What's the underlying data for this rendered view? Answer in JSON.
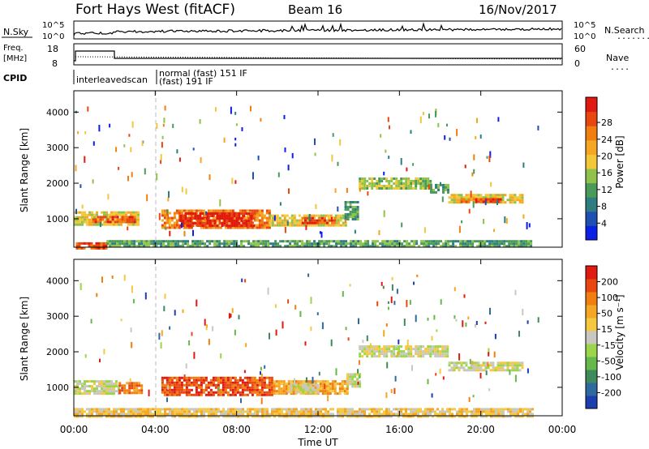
{
  "header": {
    "station": "Fort Hays West (fitACF)",
    "beam": "Beam 16",
    "date": "16/Nov/2017"
  },
  "panels": {
    "nsky": {
      "left_label": "N.Sky",
      "left_ticks": [
        "10^5",
        "10^0"
      ],
      "right_label": "N.Search",
      "right_ticks": [
        "10^5",
        "10^0"
      ],
      "legend_dots": "........"
    },
    "freq": {
      "left_label_1": "Freq.",
      "left_label_2": "[MHz]",
      "left_ticks": [
        "18",
        "8"
      ],
      "right_label": "Nave",
      "right_ticks": [
        "60",
        "0"
      ],
      "legend_dots": "...."
    },
    "cpid": {
      "label": "CPID",
      "modes": [
        "interleavedscan",
        "normal (fast) 151 IF",
        "(fast) 191 IF"
      ]
    }
  },
  "chart_data": [
    {
      "type": "heatmap",
      "name": "power",
      "ylabel": "Slant Range [km]",
      "yticks": [
        "1000",
        "2000",
        "3000",
        "4000"
      ],
      "ylim": [
        200,
        4600
      ],
      "xlim": [
        0,
        24
      ],
      "colorbar": {
        "label": "Power [dB]",
        "ticks": [
          "4",
          "8",
          "12",
          "16",
          "20",
          "24",
          "28"
        ],
        "colors": [
          "#0b1fe6",
          "#1f4fb0",
          "#2e7d82",
          "#4a9a5a",
          "#8fc24a",
          "#f2c83a",
          "#f5a623",
          "#f07f10",
          "#e84810",
          "#e01a10"
        ]
      },
      "regions": [
        {
          "x0": 0.0,
          "x1": 3.2,
          "y0": 820,
          "y1": 1210,
          "level": 5
        },
        {
          "x0": 0.9,
          "x1": 3.0,
          "y0": 900,
          "y1": 1080,
          "level": 8
        },
        {
          "x0": 4.3,
          "x1": 9.6,
          "y0": 780,
          "y1": 1260,
          "level": 7
        },
        {
          "x0": 5.2,
          "x1": 8.8,
          "y0": 820,
          "y1": 1180,
          "level": 9
        },
        {
          "x0": 9.6,
          "x1": 13.4,
          "y0": 830,
          "y1": 1120,
          "level": 5
        },
        {
          "x0": 11.2,
          "x1": 12.8,
          "y0": 860,
          "y1": 1050,
          "level": 8
        },
        {
          "x0": 13.3,
          "x1": 14.0,
          "y0": 1000,
          "y1": 1500,
          "level": 3
        },
        {
          "x0": 14.0,
          "x1": 17.5,
          "y0": 1860,
          "y1": 2160,
          "level": 4
        },
        {
          "x0": 17.5,
          "x1": 18.4,
          "y0": 1760,
          "y1": 1980,
          "level": 3
        },
        {
          "x0": 18.4,
          "x1": 22.0,
          "y0": 1450,
          "y1": 1700,
          "level": 5
        },
        {
          "x0": 19.0,
          "x1": 21.0,
          "y0": 1450,
          "y1": 1580,
          "level": 8
        },
        {
          "x0": 0.1,
          "x1": 1.6,
          "y0": 200,
          "y1": 340,
          "level": 8
        },
        {
          "x0": 1.6,
          "x1": 22.5,
          "y0": 200,
          "y1": 400,
          "level": 3
        }
      ]
    },
    {
      "type": "heatmap",
      "name": "velocity",
      "xlabel": "Time UT",
      "xticks": [
        "00:00",
        "04:00",
        "08:00",
        "12:00",
        "16:00",
        "20:00",
        "00:00"
      ],
      "ylabel": "Slant Range [km]",
      "yticks": [
        "1000",
        "2000",
        "3000",
        "4000"
      ],
      "ylim": [
        200,
        4600
      ],
      "xlim": [
        0,
        24
      ],
      "colorbar": {
        "label": "Velocity [m s⁻¹]",
        "ticks": [
          "200",
          "100",
          "50",
          "15",
          "-15",
          "-50",
          "-100",
          "-200"
        ],
        "colors": [
          "#1c3fb0",
          "#2e6aa0",
          "#3f8a5a",
          "#66b84a",
          "#9bd64a",
          "#c8c8c0",
          "#f5c842",
          "#f5a623",
          "#f07f10",
          "#e84810",
          "#e01a10"
        ]
      },
      "regions": [
        {
          "x0": 0.0,
          "x1": 2.2,
          "y0": 820,
          "y1": 1200,
          "level": 5
        },
        {
          "x0": 2.2,
          "x1": 3.3,
          "y0": 820,
          "y1": 1150,
          "level": 8
        },
        {
          "x0": 4.3,
          "x1": 9.8,
          "y0": 800,
          "y1": 1300,
          "level": 9
        },
        {
          "x0": 9.8,
          "x1": 13.4,
          "y0": 830,
          "y1": 1200,
          "level": 7
        },
        {
          "x0": 10.5,
          "x1": 12.0,
          "y0": 860,
          "y1": 1100,
          "level": 5
        },
        {
          "x0": 13.4,
          "x1": 14.0,
          "y0": 1000,
          "y1": 1400,
          "level": 5
        },
        {
          "x0": 14.0,
          "x1": 18.4,
          "y0": 1870,
          "y1": 2180,
          "level": 5
        },
        {
          "x0": 18.4,
          "x1": 22.0,
          "y0": 1480,
          "y1": 1720,
          "level": 5
        },
        {
          "x0": 0.0,
          "x1": 22.5,
          "y0": 200,
          "y1": 420,
          "level": 6
        }
      ]
    }
  ]
}
